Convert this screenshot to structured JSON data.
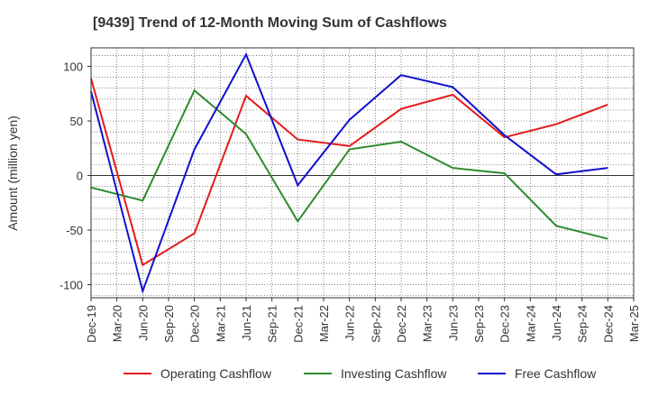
{
  "chart_data": {
    "type": "line",
    "title": "[9439]  Trend of 12-Month Moving Sum of Cashflows",
    "ylabel": "Amount (million yen)",
    "xlabel": "",
    "categories": [
      "Dec-19",
      "Mar-20",
      "Jun-20",
      "Sep-20",
      "Dec-20",
      "Mar-21",
      "Jun-21",
      "Sep-21",
      "Dec-21",
      "Mar-22",
      "Jun-22",
      "Sep-22",
      "Dec-22",
      "Mar-23",
      "Jun-23",
      "Sep-23",
      "Dec-23",
      "Mar-24",
      "Jun-24",
      "Sep-24",
      "Dec-24",
      "Mar-25"
    ],
    "yticks": [
      100,
      50,
      0,
      -50,
      -100
    ],
    "ylim": [
      -112,
      117
    ],
    "grid": true,
    "legend_position": "bottom",
    "series": [
      {
        "name": "Operating Cashflow",
        "color": "#e41a1c",
        "values": [
          89,
          null,
          -82,
          null,
          -53,
          null,
          73,
          null,
          33,
          null,
          27,
          null,
          61,
          null,
          74,
          null,
          35,
          null,
          47,
          null,
          65,
          null
        ]
      },
      {
        "name": "Investing Cashflow",
        "color": "#2e8b2e",
        "values": [
          -11,
          null,
          -23,
          null,
          78,
          null,
          38,
          null,
          -42,
          null,
          24,
          null,
          31,
          null,
          7,
          null,
          2,
          null,
          -46,
          null,
          -58,
          null
        ]
      },
      {
        "name": "Free Cashflow",
        "color": "#1010cc",
        "values": [
          77,
          null,
          -106,
          null,
          24,
          null,
          111,
          null,
          -9,
          null,
          51,
          null,
          92,
          null,
          81,
          null,
          37,
          null,
          1,
          null,
          7,
          null
        ]
      }
    ]
  }
}
